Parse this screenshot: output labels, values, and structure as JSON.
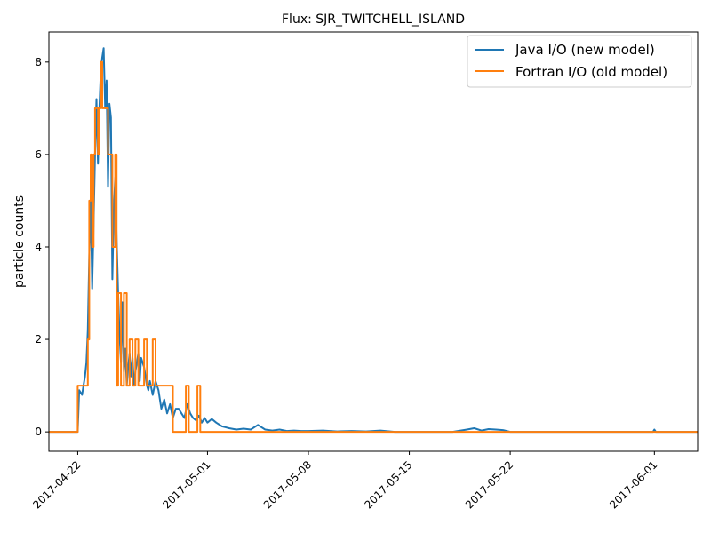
{
  "chart_data": {
    "type": "line",
    "title": "Flux: SJR_TWITCHELL_ISLAND",
    "xlabel": "",
    "ylabel": "particle counts",
    "x_unit": "days since 2017-04-22",
    "xlim": [
      -2,
      43
    ],
    "ylim": [
      -0.42,
      8.65
    ],
    "yticks": [
      0,
      2,
      4,
      6,
      8
    ],
    "xticks": [
      {
        "x": 0,
        "label": "2017-04-22"
      },
      {
        "x": 9,
        "label": "2017-05-01"
      },
      {
        "x": 16,
        "label": "2017-05-08"
      },
      {
        "x": 23,
        "label": "2017-05-15"
      },
      {
        "x": 30,
        "label": "2017-05-22"
      },
      {
        "x": 40,
        "label": "2017-06-01"
      }
    ],
    "legend_position": "top-right",
    "grid": false,
    "series": [
      {
        "name": "Java I/O (new model)",
        "color": "#1f77b4",
        "x": [
          -2,
          0,
          0.1,
          0.3,
          0.4,
          0.5,
          0.6,
          0.7,
          0.8,
          0.9,
          1.0,
          1.1,
          1.2,
          1.3,
          1.4,
          1.5,
          1.6,
          1.7,
          1.8,
          1.9,
          2.0,
          2.1,
          2.2,
          2.3,
          2.4,
          2.5,
          2.6,
          2.7,
          2.8,
          2.9,
          3.0,
          3.1,
          3.2,
          3.3,
          3.4,
          3.5,
          3.6,
          3.7,
          3.8,
          3.9,
          4.0,
          4.1,
          4.2,
          4.3,
          4.4,
          4.5,
          4.6,
          4.7,
          4.8,
          4.9,
          5.0,
          5.2,
          5.4,
          5.6,
          5.8,
          6.0,
          6.2,
          6.4,
          6.6,
          6.8,
          7.0,
          7.2,
          7.4,
          7.6,
          7.8,
          8.0,
          8.2,
          8.4,
          8.6,
          8.8,
          9.0,
          9.3,
          9.6,
          10.0,
          10.5,
          11.0,
          11.5,
          12.0,
          12.5,
          13.0,
          13.5,
          14.0,
          14.5,
          15.0,
          15.5,
          16.0,
          17.0,
          18.0,
          19.0,
          20.0,
          21.0,
          22.0,
          23.0,
          24.0,
          26.0,
          27.0,
          27.5,
          28.0,
          28.5,
          29.0,
          29.5,
          30.0,
          31.0,
          35.0,
          39.9,
          40.0,
          40.1,
          43.0
        ],
        "y": [
          0,
          0,
          0.9,
          0.8,
          1.0,
          1.2,
          1.5,
          2.2,
          3.8,
          5.0,
          3.1,
          4.5,
          6.0,
          7.2,
          5.8,
          7.0,
          7.8,
          8.1,
          8.3,
          7.0,
          7.6,
          5.3,
          7.1,
          6.8,
          3.3,
          4.8,
          5.5,
          4.2,
          3.0,
          2.1,
          1.5,
          2.8,
          1.3,
          1.8,
          1.0,
          1.4,
          1.7,
          1.2,
          1.6,
          1.0,
          1.3,
          1.5,
          1.7,
          1.1,
          1.6,
          1.5,
          1.4,
          1.2,
          1.0,
          0.9,
          1.1,
          0.8,
          1.1,
          0.9,
          0.5,
          0.7,
          0.4,
          0.6,
          0.3,
          0.5,
          0.5,
          0.4,
          0.3,
          0.6,
          0.4,
          0.3,
          0.25,
          0.35,
          0.2,
          0.3,
          0.2,
          0.28,
          0.2,
          0.12,
          0.08,
          0.05,
          0.07,
          0.05,
          0.15,
          0.05,
          0.03,
          0.05,
          0.02,
          0.03,
          0.02,
          0.02,
          0.03,
          0.01,
          0.02,
          0.01,
          0.03,
          0.0,
          0.0,
          0.0,
          0.0,
          0.05,
          0.08,
          0.03,
          0.06,
          0.05,
          0.04,
          0.0,
          0.0,
          0.0,
          0.0,
          0.05,
          0.0,
          0.0
        ]
      },
      {
        "name": "Fortran I/O (old model)",
        "color": "#ff7f0e",
        "x": [
          -2,
          0,
          0,
          0.5,
          0.5,
          0.7,
          0.7,
          0.8,
          0.8,
          0.9,
          0.9,
          1.0,
          1.0,
          1.1,
          1.1,
          1.2,
          1.2,
          1.4,
          1.4,
          1.5,
          1.5,
          1.6,
          1.6,
          1.7,
          1.7,
          1.8,
          1.8,
          2.0,
          2.0,
          2.1,
          2.1,
          2.4,
          2.4,
          2.6,
          2.6,
          2.7,
          2.7,
          2.8,
          2.8,
          3.0,
          3.0,
          3.2,
          3.2,
          3.4,
          3.4,
          3.6,
          3.6,
          3.8,
          3.8,
          4.0,
          4.0,
          4.2,
          4.2,
          4.4,
          4.4,
          4.6,
          4.6,
          4.8,
          4.8,
          5.0,
          5.0,
          5.2,
          5.2,
          5.4,
          5.4,
          5.6,
          5.6,
          6.0,
          6.0,
          6.2,
          6.2,
          6.4,
          6.4,
          6.6,
          6.6,
          7.5,
          7.5,
          7.7,
          7.7,
          8.3,
          8.3,
          8.5,
          8.5,
          9.0,
          9.0,
          43.0
        ],
        "y": [
          0,
          0,
          1,
          1,
          1,
          1,
          2,
          2,
          5,
          5,
          6,
          6,
          4,
          4,
          6,
          6,
          7,
          7,
          6,
          6,
          7,
          7,
          8,
          8,
          7,
          7,
          7,
          7,
          7,
          7,
          6,
          6,
          4,
          4,
          6,
          6,
          1,
          1,
          3,
          3,
          1,
          1,
          3,
          3,
          1,
          1,
          2,
          2,
          1,
          1,
          2,
          2,
          1,
          1,
          1,
          1,
          2,
          2,
          1,
          1,
          1,
          1,
          2,
          2,
          1,
          1,
          1,
          1,
          1,
          1,
          1,
          1,
          1,
          1,
          0,
          0,
          1,
          1,
          0,
          0,
          1,
          1,
          0,
          0,
          0,
          0
        ]
      }
    ]
  }
}
